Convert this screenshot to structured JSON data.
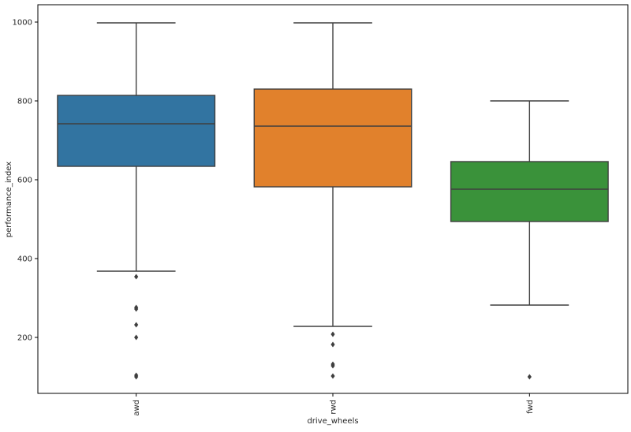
{
  "chart_data": {
    "type": "box",
    "title": "",
    "xlabel": "drive_wheels",
    "ylabel": "performance_index",
    "ylim": [
      58,
      1044
    ],
    "yticks": [
      200,
      400,
      600,
      800,
      1000
    ],
    "grid": false,
    "categories": [
      "awd",
      "rwd",
      "fwd"
    ],
    "boxes": [
      {
        "category": "awd",
        "whisker_low": 368,
        "q1": 634,
        "median": 742,
        "q3": 814,
        "whisker_high": 998,
        "outliers": [
          354,
          276,
          272,
          232,
          200,
          104,
          100
        ],
        "color": "#3274a1"
      },
      {
        "category": "rwd",
        "whisker_low": 228,
        "q1": 582,
        "median": 736,
        "q3": 830,
        "whisker_high": 998,
        "outliers": [
          208,
          182,
          132,
          128,
          102
        ],
        "color": "#e1812c"
      },
      {
        "category": "fwd",
        "whisker_low": 282,
        "q1": 494,
        "median": 576,
        "q3": 646,
        "whisker_high": 800,
        "outliers": [
          100
        ],
        "color": "#3a923a"
      }
    ]
  }
}
